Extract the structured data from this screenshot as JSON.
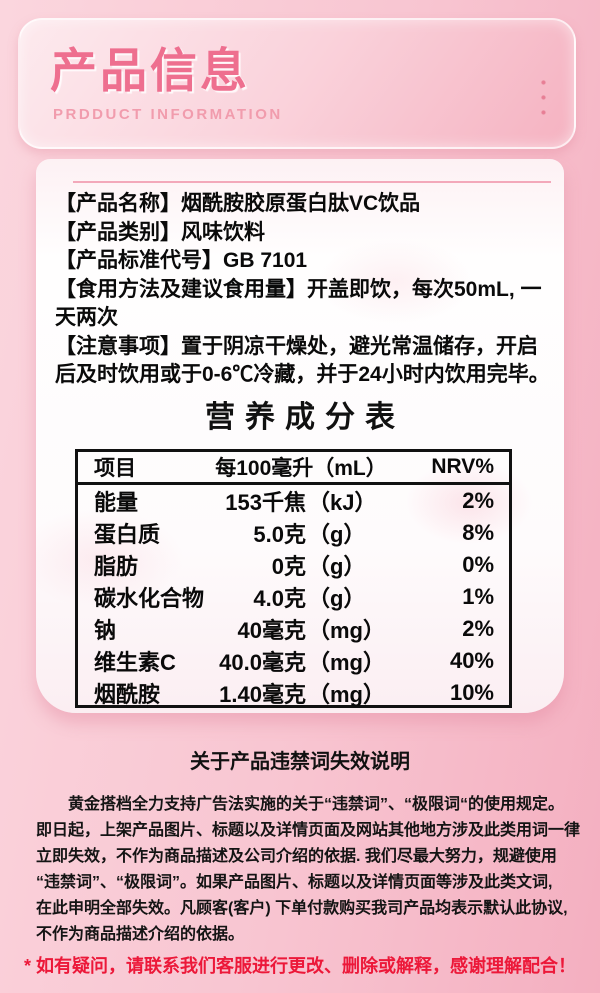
{
  "header": {
    "title": "产品信息",
    "subtitle": "PRDDUCT INFORMATION"
  },
  "product_info": {
    "lines": [
      "【产品名称】烟酰胺胶原蛋白肽VC饮品",
      "【产品类别】风味饮料",
      "【产品标准代号】GB 7101",
      "【食用方法及建议食用量】开盖即饮，每次50mL, 一",
      "天两次",
      "【注意事项】置于阴凉干燥处，避光常温储存，开启",
      "后及时饮用或于0-6℃冷藏，并于24小时内饮用完毕。"
    ]
  },
  "nutrition": {
    "title": "营养成分表",
    "table": {
      "header": {
        "item": "项目",
        "per": "每100毫升（mL）",
        "nrv": "NRV%"
      },
      "rows": [
        {
          "name": "能量",
          "value": "153千焦",
          "unit": "（kJ）",
          "nrv": "2%"
        },
        {
          "name": "蛋白质",
          "value": "5.0克",
          "unit": "（g）",
          "nrv": "8%"
        },
        {
          "name": "脂肪",
          "value": "0克",
          "unit": "（g）",
          "nrv": "0%"
        },
        {
          "name": "碳水化合物",
          "value": "4.0克",
          "unit": "（g）",
          "nrv": "1%"
        },
        {
          "name": "钠",
          "value": "40毫克",
          "unit": "（mg）",
          "nrv": "2%"
        },
        {
          "name": "维生素C",
          "value": "40.0毫克",
          "unit": "（mg）",
          "nrv": "40%"
        },
        {
          "name": "烟酰胺",
          "value": "1.40毫克",
          "unit": "（mg）",
          "nrv": "10%"
        }
      ]
    }
  },
  "disclaimer": {
    "title": "关于产品违禁词失效说明",
    "lines": [
      "黄金搭档全力支持广告法实施的关于“违禁词”、“极限词“的使用规定。",
      "即日起，上架产品图片、标题以及详情页面及网站其他地方涉及此类用词一律",
      "立即失效，不作为商品描述及公司介绍的依据. 我们尽最大努力，规避使用",
      "“违禁词”、“极限词”。如果产品图片、标题以及详情页面等涉及此类文词,",
      "在此申明全部失效。凡顾客(客户) 下单付款购买我司产品均表示默认此协议,",
      "不作为商品描述介绍的依据。"
    ],
    "note": "* 如有疑问，请联系我们客服进行更改、删除或解释，感谢理解配合！"
  },
  "colors": {
    "accent_pink": "#ee6f8f",
    "background_pink": "#f8c5d1",
    "divider_pink": "#f3a8ba",
    "note_red": "#ec1839",
    "table_border": "#111111"
  }
}
